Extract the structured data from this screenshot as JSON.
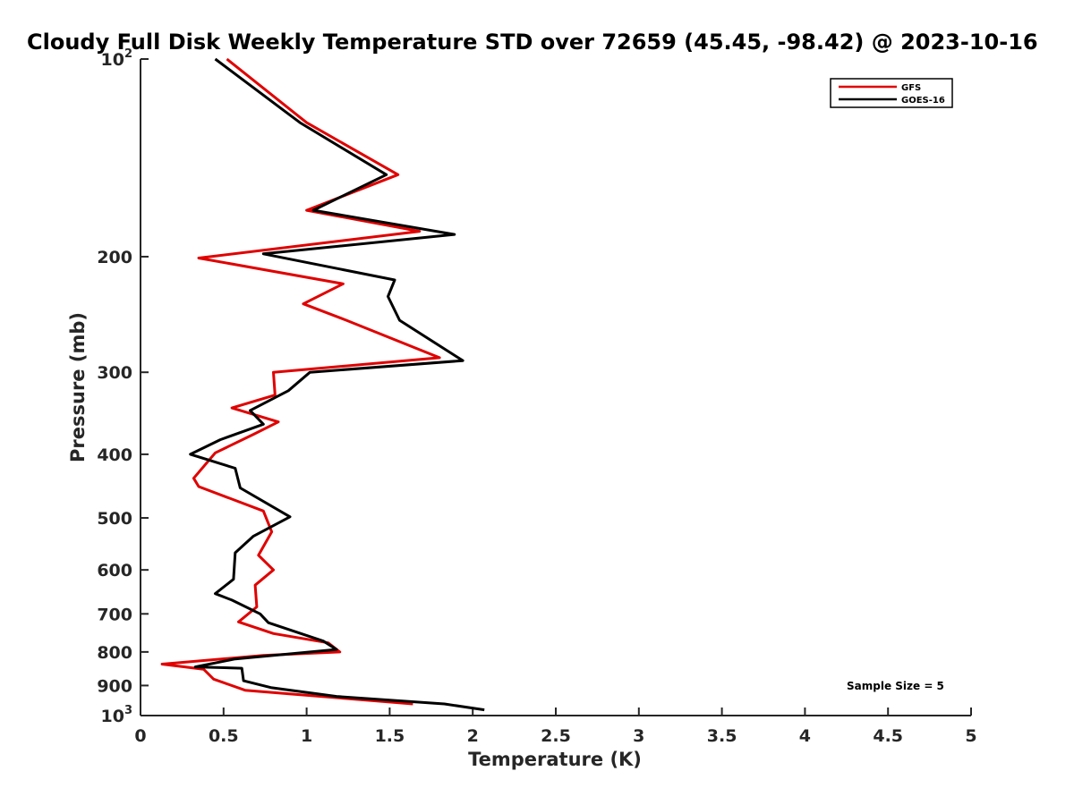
{
  "chart_data": {
    "type": "line",
    "title": "Cloudy Full Disk Weekly Temperature STD over 72659 (45.45, -98.42) @ 2023-10-16",
    "xlabel": "Temperature (K)",
    "ylabel": "Pressure (mb)",
    "xlim": [
      0,
      5
    ],
    "ylim": [
      100,
      1000
    ],
    "y_scale": "log",
    "y_reversed": true,
    "grid": false,
    "legend_position": "top-right",
    "x_ticks": [
      "0",
      "0.5",
      "1",
      "1.5",
      "2",
      "2.5",
      "3",
      "3.5",
      "4",
      "4.5",
      "5"
    ],
    "y_ticks": [
      {
        "value": 100,
        "base": "10",
        "exp": "2"
      },
      {
        "value": 200,
        "label": "200"
      },
      {
        "value": 300,
        "label": "300"
      },
      {
        "value": 400,
        "label": "400"
      },
      {
        "value": 500,
        "label": "500"
      },
      {
        "value": 600,
        "label": "600"
      },
      {
        "value": 700,
        "label": "700"
      },
      {
        "value": 800,
        "label": "800"
      },
      {
        "value": 900,
        "label": "900"
      },
      {
        "value": 1000,
        "base": "10",
        "exp": "3"
      }
    ],
    "annotation": "Sample Size = 5",
    "series": [
      {
        "name": "GFS",
        "color": "#e00000",
        "points": [
          [
            0.52,
            100
          ],
          [
            1.0,
            125
          ],
          [
            1.55,
            150
          ],
          [
            1.0,
            170
          ],
          [
            1.68,
            183
          ],
          [
            0.35,
            201
          ],
          [
            1.22,
            220
          ],
          [
            0.98,
            236
          ],
          [
            1.24,
            250
          ],
          [
            1.8,
            285
          ],
          [
            0.8,
            300
          ],
          [
            0.81,
            325
          ],
          [
            0.55,
            340
          ],
          [
            0.83,
            357
          ],
          [
            0.68,
            373
          ],
          [
            0.45,
            398
          ],
          [
            0.32,
            435
          ],
          [
            0.35,
            448
          ],
          [
            0.74,
            488
          ],
          [
            0.79,
            525
          ],
          [
            0.71,
            570
          ],
          [
            0.8,
            600
          ],
          [
            0.69,
            633
          ],
          [
            0.7,
            683
          ],
          [
            0.59,
            720
          ],
          [
            0.8,
            750
          ],
          [
            1.13,
            775
          ],
          [
            1.2,
            800
          ],
          [
            0.74,
            810
          ],
          [
            0.13,
            835
          ],
          [
            0.38,
            850
          ],
          [
            0.44,
            880
          ],
          [
            0.63,
            915
          ],
          [
            1.64,
            960
          ]
        ]
      },
      {
        "name": "GOES-16",
        "color": "#000000",
        "points": [
          [
            0.45,
            100
          ],
          [
            0.96,
            125
          ],
          [
            1.48,
            150
          ],
          [
            1.04,
            170
          ],
          [
            1.89,
            185
          ],
          [
            0.74,
            198
          ],
          [
            1.53,
            217
          ],
          [
            1.49,
            230
          ],
          [
            1.56,
            250
          ],
          [
            1.94,
            288
          ],
          [
            1.02,
            300
          ],
          [
            0.89,
            320
          ],
          [
            0.66,
            343
          ],
          [
            0.74,
            360
          ],
          [
            0.48,
            380
          ],
          [
            0.3,
            400
          ],
          [
            0.57,
            420
          ],
          [
            0.6,
            450
          ],
          [
            0.9,
            498
          ],
          [
            0.68,
            533
          ],
          [
            0.57,
            565
          ],
          [
            0.56,
            620
          ],
          [
            0.45,
            652
          ],
          [
            0.55,
            667
          ],
          [
            0.72,
            700
          ],
          [
            0.77,
            722
          ],
          [
            1.1,
            770
          ],
          [
            1.18,
            793
          ],
          [
            0.57,
            820
          ],
          [
            0.33,
            843
          ],
          [
            0.61,
            847
          ],
          [
            0.62,
            885
          ],
          [
            0.79,
            907
          ],
          [
            1.18,
            935
          ],
          [
            1.83,
            960
          ],
          [
            2.07,
            980
          ]
        ]
      }
    ]
  }
}
